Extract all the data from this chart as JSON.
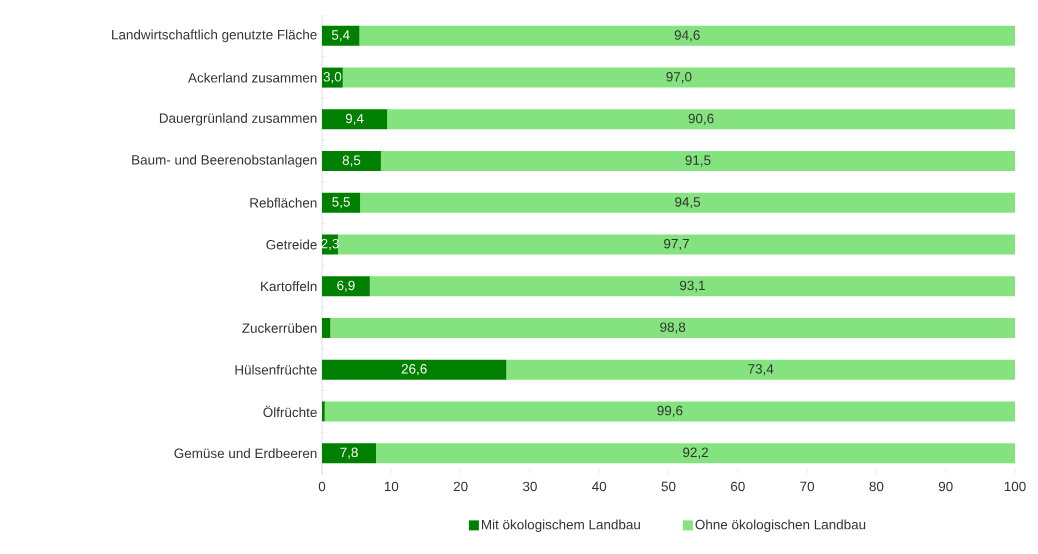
{
  "chart_data": {
    "type": "bar",
    "orientation": "horizontal",
    "stacked": true,
    "categories": [
      "Landwirtschaftlich genutzte Fläche",
      "Ackerland zusammen",
      "Dauergrünland zusammen",
      "Baum- und Beerenobstanlagen",
      "Rebflächen",
      "Getreide",
      "Kartoffeln",
      "Zuckerrüben",
      "Hülsenfrüchte",
      "Ölfrüchte",
      "Gemüse und Erdbeeren"
    ],
    "series": [
      {
        "name": "Mit ökologischem Landbau",
        "color": "#008000",
        "values": [
          5.4,
          3.0,
          9.4,
          8.5,
          5.5,
          2.3,
          6.9,
          1.2,
          26.6,
          0.4,
          7.8
        ],
        "value_labels": [
          "5,4",
          "3,0",
          "9,4",
          "8,5",
          "5,5",
          "2,3",
          "6,9",
          null,
          "26,6",
          null,
          "7,8"
        ]
      },
      {
        "name": "Ohne ökologischen Landbau",
        "color": "#85e37f",
        "values": [
          94.6,
          97.0,
          90.6,
          91.5,
          94.5,
          97.7,
          93.1,
          98.8,
          73.4,
          99.6,
          92.2
        ],
        "value_labels": [
          "94,6",
          "97,0",
          "90,6",
          "91,5",
          "94,5",
          "97,7",
          "93,1",
          "98,8",
          "73,4",
          "99,6",
          "92,2"
        ]
      }
    ],
    "xlim": [
      0,
      100
    ],
    "xticks": [
      0,
      10,
      20,
      30,
      40,
      50,
      60,
      70,
      80,
      90,
      100
    ],
    "legend": "bottom",
    "grid": false
  }
}
